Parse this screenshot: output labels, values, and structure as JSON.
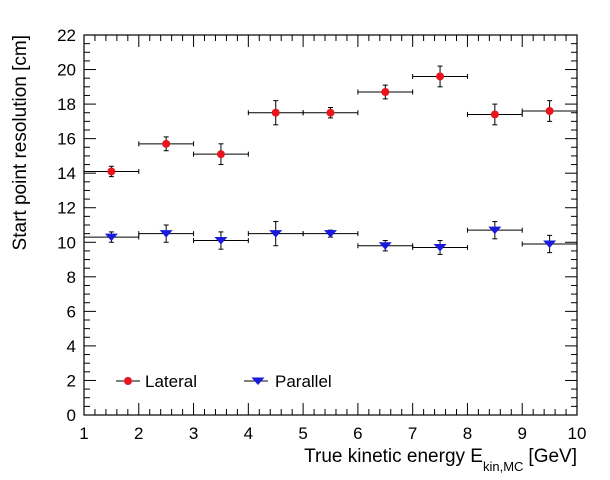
{
  "chart_data": {
    "type": "scatter",
    "title": "",
    "xlabel": "True kinetic energy E",
    "xlabel_sub": "kin,MC",
    "xlabel_unit": "[GeV]",
    "ylabel": "Start point resolution [cm]",
    "xlim": [
      1,
      10
    ],
    "ylim": [
      0,
      22
    ],
    "x_ticks": [
      "1",
      "2",
      "3",
      "4",
      "5",
      "6",
      "7",
      "8",
      "9",
      "10"
    ],
    "y_ticks": [
      "0",
      "2",
      "4",
      "6",
      "8",
      "10",
      "12",
      "14",
      "16",
      "18",
      "20",
      "22"
    ],
    "x_bin_halfwidth": 0.5,
    "legend_position": "bottom-left",
    "series": [
      {
        "name": "Lateral",
        "marker": "circle",
        "color": "#e8141e",
        "x": [
          1.5,
          2.5,
          3.5,
          4.5,
          5.5,
          6.5,
          7.5,
          8.5,
          9.5
        ],
        "y": [
          14.1,
          15.7,
          15.1,
          17.5,
          17.5,
          18.7,
          19.6,
          17.4,
          17.6
        ],
        "yerr": [
          0.3,
          0.4,
          0.6,
          0.7,
          0.3,
          0.4,
          0.6,
          0.6,
          0.6
        ]
      },
      {
        "name": "Parallel",
        "marker": "triangle-down",
        "color": "#1a1adc",
        "x": [
          1.5,
          2.5,
          3.5,
          4.5,
          5.5,
          6.5,
          7.5,
          8.5,
          9.5
        ],
        "y": [
          10.3,
          10.5,
          10.1,
          10.5,
          10.5,
          9.8,
          9.7,
          10.7,
          9.9
        ],
        "yerr": [
          0.3,
          0.5,
          0.5,
          0.7,
          0.2,
          0.3,
          0.4,
          0.5,
          0.5
        ]
      }
    ]
  }
}
